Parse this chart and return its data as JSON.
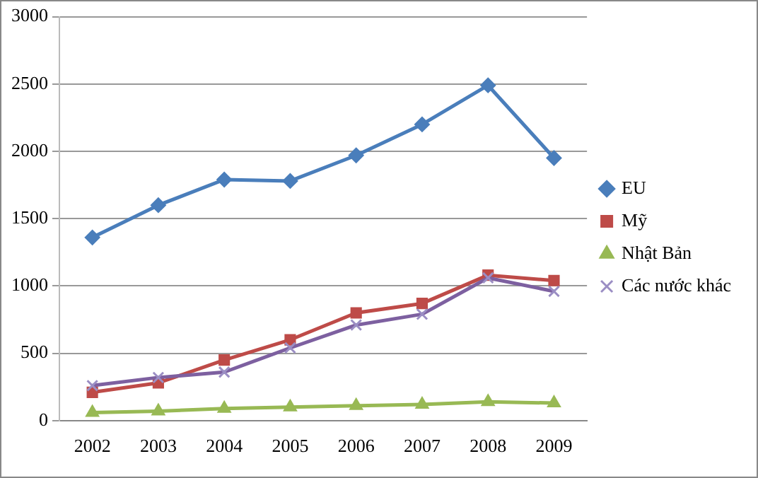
{
  "chart_data": {
    "type": "line",
    "categories": [
      "2002",
      "2003",
      "2004",
      "2005",
      "2006",
      "2007",
      "2008",
      "2009"
    ],
    "series": [
      {
        "name": "EU",
        "color": "#4a7ebb",
        "marker": "diamond",
        "values": [
          1360,
          1600,
          1790,
          1780,
          1970,
          2200,
          2490,
          1950
        ]
      },
      {
        "name": "Mỹ",
        "color": "#be4b48",
        "marker": "square",
        "values": [
          210,
          280,
          450,
          600,
          800,
          870,
          1080,
          1040
        ]
      },
      {
        "name": "Nhật Bản",
        "color": "#98b954",
        "marker": "triangle",
        "values": [
          60,
          70,
          90,
          100,
          110,
          120,
          140,
          130
        ]
      },
      {
        "name": "Các nước khác",
        "color": "#7d60a0",
        "marker": "cross",
        "values": [
          260,
          320,
          360,
          540,
          710,
          790,
          1060,
          960
        ]
      }
    ],
    "ylim": [
      0,
      3000
    ],
    "yticks": [
      0,
      500,
      1000,
      1500,
      2000,
      2500,
      3000
    ],
    "grid": "y",
    "legend": "right",
    "line_style": "solid"
  }
}
